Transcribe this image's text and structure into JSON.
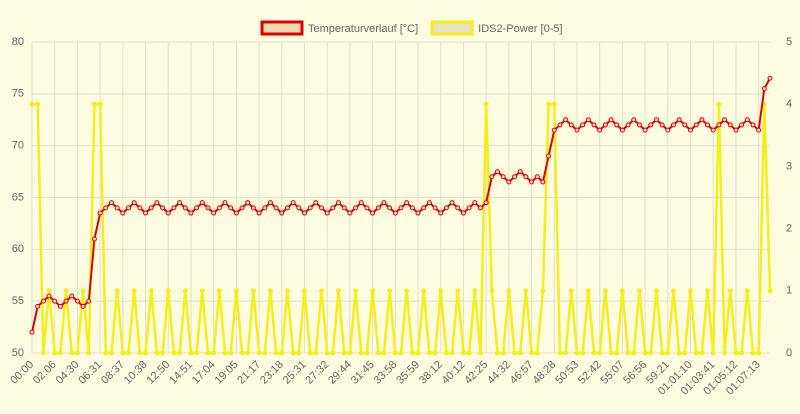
{
  "chart_data": {
    "type": "line",
    "categories": [
      "00:00",
      null,
      null,
      null,
      "02:06",
      null,
      null,
      null,
      "04:30",
      null,
      null,
      null,
      "06:31",
      null,
      null,
      null,
      "08:37",
      null,
      null,
      null,
      "10:38",
      null,
      null,
      null,
      "12:50",
      null,
      null,
      null,
      "14:51",
      null,
      null,
      null,
      "17:04",
      null,
      null,
      null,
      "19:05",
      null,
      null,
      null,
      "21:17",
      null,
      null,
      null,
      "23:18",
      null,
      null,
      null,
      "25:31",
      null,
      null,
      null,
      "27:32",
      null,
      null,
      null,
      "29:44",
      null,
      null,
      null,
      "31:45",
      null,
      null,
      null,
      "33:58",
      null,
      null,
      null,
      "35:59",
      null,
      null,
      null,
      "38:12",
      null,
      null,
      null,
      "40:12",
      null,
      null,
      null,
      "42:25",
      null,
      null,
      null,
      "44:32",
      null,
      null,
      null,
      "46:57",
      null,
      null,
      null,
      "48:28",
      null,
      null,
      null,
      "50:53",
      null,
      null,
      null,
      "52:42",
      null,
      null,
      null,
      "55:07",
      null,
      null,
      null,
      "56:56",
      null,
      null,
      null,
      "59:21",
      null,
      null,
      null,
      "01:01:10",
      null,
      null,
      null,
      "01:03:41",
      null,
      null,
      null,
      "01:05:12",
      null,
      null,
      null,
      "01:07:13",
      null,
      null
    ],
    "series": [
      {
        "name": "Temperaturverlauf [°C]",
        "color": "#e00000",
        "fill": "#f0d8b0",
        "values": [
          52,
          54.5,
          55,
          55.5,
          55,
          54.5,
          55,
          55.5,
          55,
          54.5,
          55,
          61,
          63.5,
          64,
          64.5,
          64,
          63.5,
          64,
          64.5,
          64,
          63.5,
          64,
          64.5,
          64,
          63.5,
          64,
          64.5,
          64,
          63.5,
          64,
          64.5,
          64,
          63.5,
          64,
          64.5,
          64,
          63.5,
          64,
          64.5,
          64,
          63.5,
          64,
          64.5,
          64,
          63.5,
          64,
          64.5,
          64,
          63.5,
          64,
          64.5,
          64,
          63.5,
          64,
          64.5,
          64,
          63.5,
          64,
          64.5,
          64,
          63.5,
          64,
          64.5,
          64,
          63.5,
          64,
          64.5,
          64,
          63.5,
          64,
          64.5,
          64,
          63.5,
          64,
          64.5,
          64,
          63.5,
          64,
          64.5,
          64,
          64.5,
          67,
          67.5,
          67,
          66.5,
          67,
          67.5,
          67,
          66.5,
          67,
          66.5,
          69,
          71.5,
          72,
          72.5,
          72,
          71.5,
          72,
          72.5,
          72,
          71.5,
          72,
          72.5,
          72,
          71.5,
          72,
          72.5,
          72,
          71.5,
          72,
          72.5,
          72,
          71.5,
          72,
          72.5,
          72,
          71.5,
          72,
          72.5,
          72,
          71.5,
          72,
          72.5,
          72,
          71.5,
          72,
          72.5,
          72,
          71.5,
          75.5,
          76.5
        ]
      },
      {
        "name": "IDS2-Power [0-5]",
        "color": "#f5ee1c",
        "fill": "#e6e2c0",
        "axis": "y2",
        "values": [
          4,
          4,
          0,
          1,
          0,
          0,
          1,
          0,
          0,
          1,
          0,
          4,
          4,
          0,
          0,
          1,
          0,
          0,
          1,
          0,
          0,
          1,
          0,
          0,
          1,
          0,
          0,
          1,
          0,
          0,
          1,
          0,
          0,
          1,
          0,
          0,
          1,
          0,
          0,
          1,
          0,
          0,
          1,
          0,
          0,
          1,
          0,
          0,
          1,
          0,
          0,
          1,
          0,
          0,
          1,
          0,
          0,
          1,
          0,
          0,
          1,
          0,
          0,
          1,
          0,
          0,
          1,
          0,
          0,
          1,
          0,
          0,
          1,
          0,
          0,
          1,
          0,
          0,
          1,
          0,
          4,
          1,
          0,
          0,
          1,
          0,
          0,
          1,
          0,
          0,
          1,
          4,
          4,
          0,
          0,
          1,
          0,
          0,
          1,
          0,
          0,
          1,
          0,
          0,
          1,
          0,
          0,
          1,
          0,
          0,
          1,
          0,
          0,
          1,
          0,
          0,
          1,
          0,
          0,
          1,
          0,
          4,
          0,
          1,
          0,
          0,
          1,
          0,
          0,
          4,
          1
        ]
      }
    ],
    "ylim": [
      50,
      80
    ],
    "yticks": [
      50,
      55,
      60,
      65,
      70,
      75,
      80
    ],
    "y2lim": [
      0,
      5
    ],
    "y2ticks": [
      0,
      1,
      2,
      3,
      4,
      5
    ],
    "grid": true,
    "legend": "top"
  }
}
